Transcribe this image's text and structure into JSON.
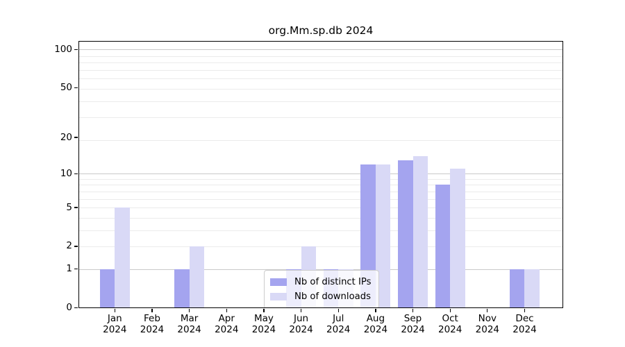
{
  "chart_data": {
    "type": "bar",
    "title": "org.Mm.sp.db 2024",
    "categories": [
      "Jan",
      "Feb",
      "Mar",
      "Apr",
      "May",
      "Jun",
      "Jul",
      "Aug",
      "Sep",
      "Oct",
      "Nov",
      "Dec"
    ],
    "x_year_label": "2024",
    "series": [
      {
        "name": "Nb of distinct IPs",
        "color": "#a4a4ef",
        "values": [
          1,
          0,
          1,
          0,
          0,
          1,
          1,
          12,
          13,
          8,
          0,
          1
        ]
      },
      {
        "name": "Nb of downloads",
        "color": "#d9d9f6",
        "values": [
          5,
          0,
          2,
          0,
          0,
          2,
          1,
          12,
          14,
          11,
          0,
          1
        ]
      }
    ],
    "yscale": "log10(value+1)",
    "yticks": [
      0,
      1,
      2,
      5,
      10,
      20,
      50,
      100
    ],
    "ylim": [
      0,
      115
    ],
    "grid": true,
    "grid_major_values": [
      1,
      10,
      100
    ],
    "grid_minor_log_positions": [
      3,
      4,
      5,
      6,
      7,
      8,
      9,
      10,
      20,
      30,
      40,
      50,
      60,
      70,
      80,
      90
    ],
    "legend_position": "inside-bottom-center"
  },
  "colors": {
    "bar_dark": "#a4a4ef",
    "bar_light": "#d9d9f6",
    "grid_major": "#c9c9c9",
    "grid_minor": "#ebebeb",
    "spine": "#000000",
    "legend_border": "#cccccc",
    "text": "#000000",
    "background": "#ffffff"
  }
}
